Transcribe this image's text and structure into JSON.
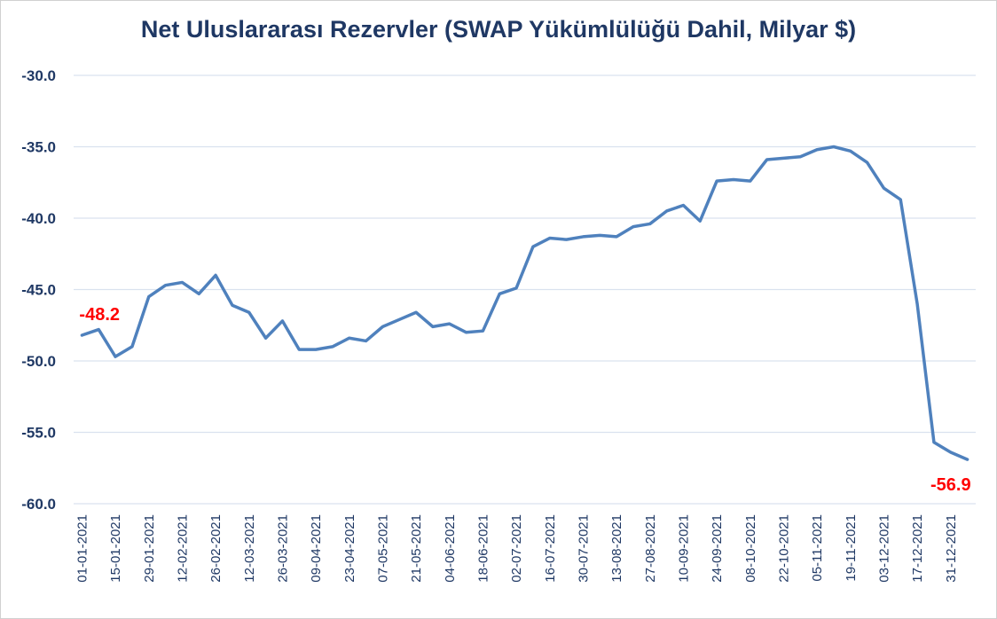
{
  "chart_data": {
    "type": "line",
    "title": "Net Uluslararası Rezervler (SWAP Yükümlülüğü Dahil, Milyar $)",
    "xlabel": "",
    "ylabel": "",
    "ylim": [
      -60,
      -30
    ],
    "yticks": [
      -30.0,
      -35.0,
      -40.0,
      -45.0,
      -50.0,
      -55.0,
      -60.0
    ],
    "ytick_labels": [
      "-30.0",
      "-35.0",
      "-40.0",
      "-45.0",
      "-50.0",
      "-55.0",
      "-60.0"
    ],
    "grid": true,
    "line_color": "#4f81bd",
    "x": [
      "01-01-2021",
      "08-01-2021",
      "15-01-2021",
      "22-01-2021",
      "29-01-2021",
      "05-02-2021",
      "12-02-2021",
      "19-02-2021",
      "26-02-2021",
      "05-03-2021",
      "12-03-2021",
      "19-03-2021",
      "26-03-2021",
      "02-04-2021",
      "09-04-2021",
      "16-04-2021",
      "23-04-2021",
      "30-04-2021",
      "07-05-2021",
      "14-05-2021",
      "21-05-2021",
      "28-05-2021",
      "04-06-2021",
      "11-06-2021",
      "18-06-2021",
      "25-06-2021",
      "02-07-2021",
      "09-07-2021",
      "16-07-2021",
      "23-07-2021",
      "30-07-2021",
      "06-08-2021",
      "13-08-2021",
      "20-08-2021",
      "27-08-2021",
      "03-09-2021",
      "10-09-2021",
      "17-09-2021",
      "24-09-2021",
      "01-10-2021",
      "08-10-2021",
      "15-10-2021",
      "22-10-2021",
      "29-10-2021",
      "05-11-2021",
      "12-11-2021",
      "19-11-2021",
      "26-11-2021",
      "03-12-2021",
      "10-12-2021",
      "17-12-2021",
      "24-12-2021",
      "31-12-2021",
      "07-01-2022"
    ],
    "x_tick_labels": [
      "01-01-2021",
      "15-01-2021",
      "29-01-2021",
      "12-02-2021",
      "26-02-2021",
      "12-03-2021",
      "26-03-2021",
      "09-04-2021",
      "23-04-2021",
      "07-05-2021",
      "21-05-2021",
      "04-06-2021",
      "18-06-2021",
      "02-07-2021",
      "16-07-2021",
      "30-07-2021",
      "13-08-2021",
      "27-08-2021",
      "10-09-2021",
      "24-09-2021",
      "08-10-2021",
      "22-10-2021",
      "05-11-2021",
      "19-11-2021",
      "03-12-2021",
      "17-12-2021",
      "31-12-2021"
    ],
    "series": [
      {
        "values": [
          -48.2,
          -47.8,
          -49.7,
          -49.0,
          -45.5,
          -44.7,
          -44.5,
          -45.3,
          -44.0,
          -46.1,
          -46.6,
          -48.4,
          -47.2,
          -49.2,
          -49.2,
          -49.0,
          -48.4,
          -48.6,
          -47.6,
          -47.1,
          -46.6,
          -47.6,
          -47.4,
          -48.0,
          -47.9,
          -45.3,
          -44.9,
          -42.0,
          -41.4,
          -41.5,
          -41.3,
          -41.2,
          -41.3,
          -40.6,
          -40.4,
          -39.5,
          -39.1,
          -40.2,
          -37.4,
          -37.3,
          -37.4,
          -35.9,
          -35.8,
          -35.7,
          -35.2,
          -35.0,
          -35.3,
          -36.1,
          -37.9,
          -38.7,
          -46.0,
          -55.7,
          -56.4,
          -56.9
        ]
      }
    ],
    "data_labels": [
      {
        "index": 0,
        "text": "-48.2",
        "color": "#ff0000"
      },
      {
        "index": 53,
        "text": "-56.9",
        "color": "#ff0000"
      }
    ]
  }
}
